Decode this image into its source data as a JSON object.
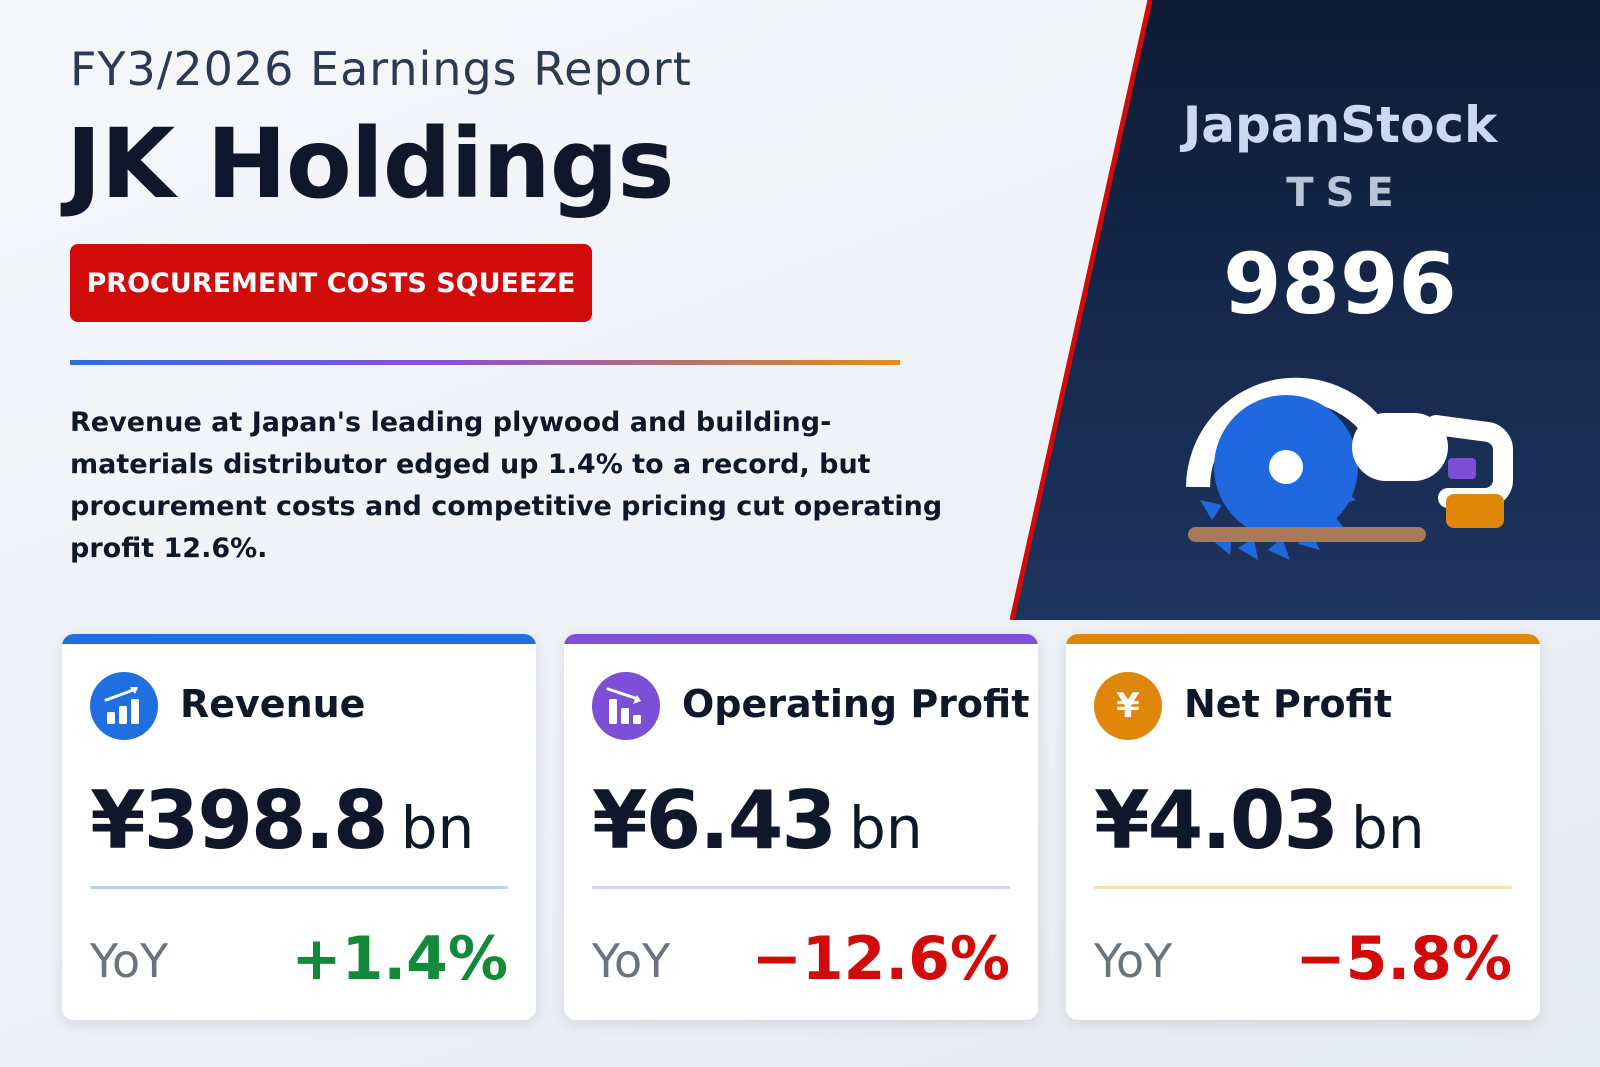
{
  "header": {
    "eyebrow": "FY3/2026 Earnings Report",
    "company": "JK Holdings",
    "tagline": "PROCUREMENT COSTS SQUEEZE",
    "summary": "Revenue at Japan's leading plywood and building-materials distributor edged up 1.4% to a record, but procurement costs and competitive pricing cut operating profit 12.6%."
  },
  "panel": {
    "brand": "JapanStock",
    "exchange": "TSE",
    "ticker": "9896",
    "illustration": "circular-saw-icon"
  },
  "cards": [
    {
      "title": "Revenue",
      "value": "¥398.8",
      "unit": "bn",
      "yoy_label": "YoY",
      "yoy_value": "+1.4%",
      "icon": "chart-up-icon",
      "accent": "#1f6fe0",
      "yoy_color": "#128a3a"
    },
    {
      "title": "Operating Profit",
      "value": "¥6.43",
      "unit": "bn",
      "yoy_label": "YoY",
      "yoy_value": "−12.6%",
      "icon": "chart-down-icon",
      "accent": "#7b4fd6",
      "yoy_color": "#d10a0a"
    },
    {
      "title": "Net Profit",
      "value": "¥4.03",
      "unit": "bn",
      "yoy_label": "YoY",
      "yoy_value": "−5.8%",
      "icon": "yen-icon",
      "icon_glyph": "¥",
      "accent": "#e0860a",
      "yoy_color": "#d10a0a"
    }
  ]
}
